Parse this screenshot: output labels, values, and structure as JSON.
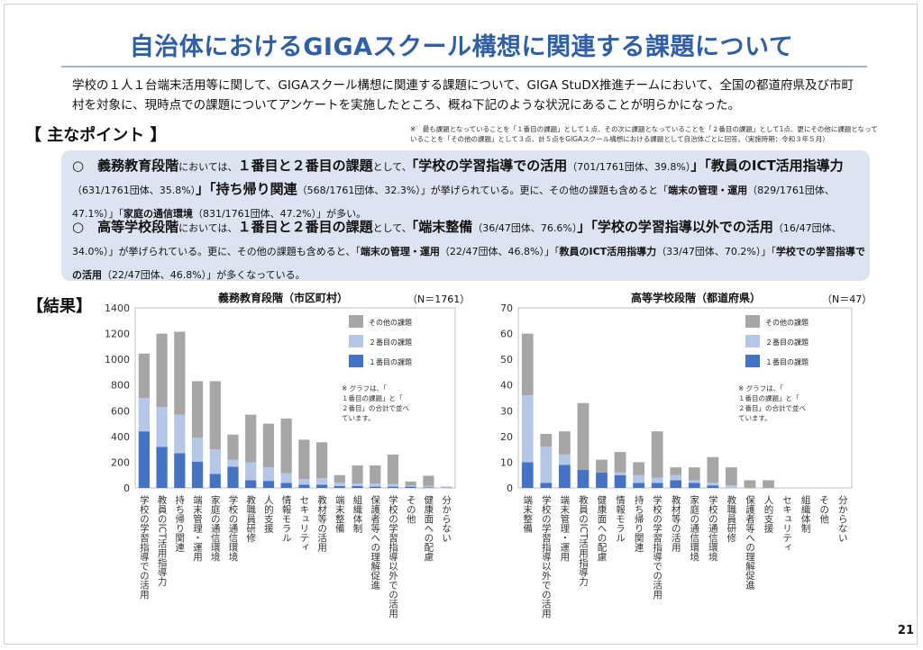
{
  "title": "自治体におけるGIGAスクール構想に関連する課題について",
  "intro": "学校の１人１台端末活用等に関して、GIGAスクール構想に関連する課題について、GIGA StuDX推進チームにおいて、全国の都道府県及び市町村を対象に、現時点での課題についてアンケートを実施したところ、概ね下記のような状況にあることが明らかになった。",
  "key_points_heading": "【 主なポイント 】",
  "note_top": "※　最も課題となっていることを「１番目の課題」として１点、その次に課題となっていることを「２番目の課題」として1点、更にその他に課題となっていることを「その他の課題」として３点、計５点をGIGAスクール構想における課題として自治体ごとに回答。（実施時期：令和３年５月）",
  "points": [
    {
      "bullet": "○",
      "parts": [
        {
          "t": "義務教育段階",
          "s": "b"
        },
        {
          "t": "においては、",
          "s": "n"
        },
        {
          "t": "１番目と２番目の課題",
          "s": "b"
        },
        {
          "t": "として、",
          "s": "n"
        },
        {
          "t": "「学校の学習指導での活用",
          "s": "b"
        },
        {
          "t": "（701/1761団体、39.8%）",
          "s": "s"
        },
        {
          "t": "」「教員のICT活用指導力",
          "s": "b"
        },
        {
          "t": "（631/1761団体、35.8%）",
          "s": "s"
        },
        {
          "t": "」「持ち帰り関連",
          "s": "b"
        },
        {
          "t": "（568/1761団体、32.3%）",
          "s": "s"
        },
        {
          "t": "」が挙げられている。",
          "s": "n"
        },
        {
          "t": "更に、その他の課題も含めると「",
          "s": "s"
        },
        {
          "t": "端末の管理・運用",
          "s": "sb"
        },
        {
          "t": "（829/1761団体、47.1%）」「",
          "s": "s"
        },
        {
          "t": "家庭の通信環境",
          "s": "sb"
        },
        {
          "t": "（831/1761団体、47.2%）」が多い。",
          "s": "s"
        }
      ]
    },
    {
      "bullet": "○",
      "parts": [
        {
          "t": "高等学校段階",
          "s": "b"
        },
        {
          "t": "においては、",
          "s": "n"
        },
        {
          "t": "１番目と２番目の課題",
          "s": "b"
        },
        {
          "t": "として、",
          "s": "n"
        },
        {
          "t": "「端末整備",
          "s": "b"
        },
        {
          "t": "（36/47団体、76.6%）",
          "s": "s"
        },
        {
          "t": "」「学校の学習指導以外での活用",
          "s": "b"
        },
        {
          "t": "（16/47団体、34.0%）",
          "s": "s"
        },
        {
          "t": "」が挙げられている。",
          "s": "n"
        },
        {
          "t": "更に、その他の課題も含めると、「",
          "s": "s"
        },
        {
          "t": "端末の管理・運用",
          "s": "sb"
        },
        {
          "t": "（22/47団体、46.8%）」「",
          "s": "s"
        },
        {
          "t": "教員のICT活用指導力",
          "s": "sb"
        },
        {
          "t": "（33/47団体、70.2%）」「",
          "s": "s"
        },
        {
          "t": "学校での学習指導での活用",
          "s": "sb"
        },
        {
          "t": "（22/47団体、46.8%）」が多くなっている。",
          "s": "s"
        }
      ]
    }
  ],
  "results_heading": "【結果】",
  "page_number": "21",
  "colors": {
    "first": "#4472c4",
    "second": "#b4c7e7",
    "other": "#a6a6a6",
    "title": "#2f5fa7"
  },
  "chart_data": [
    {
      "type": "bar",
      "stacked": true,
      "title": "義務教育段階（市区町村）",
      "n_label": "（N＝1761）",
      "ylim": [
        0,
        1400
      ],
      "yticks": [
        0,
        200,
        400,
        600,
        800,
        1000,
        1200,
        1400
      ],
      "legend_placement": "top-right",
      "note": "※ グラフは、「１番目の課題」と「２番目」の合計で並べています。",
      "categories": [
        "学校の学習指導での活用",
        "教員のICT活用指導力",
        "持ち帰り関連",
        "端末管理・運用",
        "家庭の通信環境",
        "学校の通信環境",
        "教職員研修",
        "人的支援",
        "情報モラル",
        "セキュリティ",
        "教材等の活用",
        "端末整備",
        "組織体制",
        "保護者等への理解促進",
        "学校の学習指導以外での活用",
        "その他",
        "健康面への配慮",
        "分からない"
      ],
      "series": [
        {
          "name": "１番目の課題",
          "values": [
            440,
            320,
            270,
            205,
            110,
            165,
            60,
            55,
            40,
            25,
            25,
            15,
            15,
            10,
            10,
            10,
            5,
            2
          ]
        },
        {
          "name": "２番目の課題",
          "values": [
            260,
            310,
            300,
            185,
            190,
            55,
            140,
            105,
            75,
            45,
            50,
            25,
            20,
            25,
            20,
            10,
            10,
            3
          ]
        },
        {
          "name": "その他の課題",
          "values": [
            345,
            570,
            645,
            440,
            530,
            195,
            370,
            340,
            425,
            305,
            280,
            60,
            140,
            140,
            230,
            30,
            80,
            5
          ]
        }
      ]
    },
    {
      "type": "bar",
      "stacked": true,
      "title": "高等学校段階（都道府県）",
      "n_label": "（N＝47）",
      "ylim": [
        0,
        70
      ],
      "yticks": [
        0,
        10,
        20,
        30,
        40,
        50,
        60,
        70
      ],
      "legend_placement": "top-right",
      "note": "※ グラフは、「１番目の課題」と「２番目」の合計で並べています。",
      "categories": [
        "端末整備",
        "学校の学習指導以外での活用",
        "端末管理・運用",
        "教員のICT活用指導力",
        "健康面への配慮",
        "情報モラル",
        "持ち帰り関連",
        "学校の学習指導での活用",
        "教材等の活用",
        "家庭の通信環境",
        "学校の通信環境",
        "教職員研修",
        "保護者等への理解促進",
        "人的支援",
        "セキュリティ",
        "組織体制",
        "その他",
        "分からない"
      ],
      "series": [
        {
          "name": "１番目の課題",
          "values": [
            10,
            2,
            9,
            7,
            6,
            5,
            2,
            2,
            3,
            2,
            1,
            0,
            0,
            0,
            0,
            0,
            0,
            0
          ]
        },
        {
          "name": "２番目の課題",
          "values": [
            26,
            14,
            4,
            0,
            0,
            1,
            3,
            2,
            2,
            1,
            1,
            1,
            0,
            0,
            0,
            0,
            0,
            0
          ]
        },
        {
          "name": "その他の課題",
          "values": [
            24,
            5,
            9,
            26,
            5,
            8,
            5,
            18,
            3,
            5,
            10,
            7,
            3,
            3,
            0,
            0,
            0,
            0
          ]
        }
      ]
    }
  ]
}
